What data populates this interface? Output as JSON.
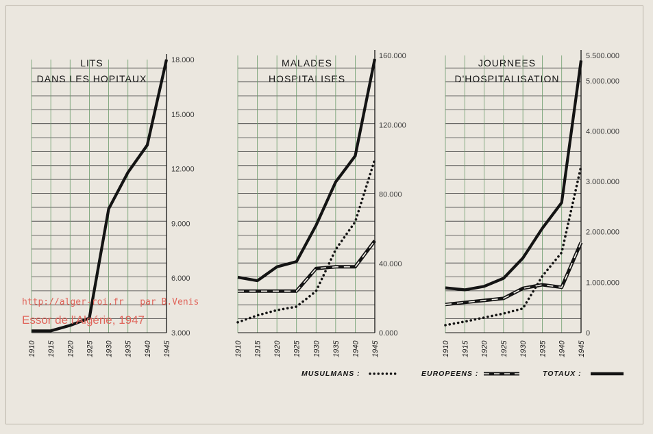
{
  "watermark": {
    "url": "http://alger-roi.fr",
    "credit": "par B.Venis",
    "source": "Essor de l'Algérie, 1947"
  },
  "legend": {
    "musulmans": "MUSULMANS :",
    "europeens": "EUROPEENS :",
    "totaux": "TOTAUX :"
  },
  "colors": {
    "paper": "#ebe7df",
    "ink": "#141414",
    "grid_h": "#3a3a3a",
    "grid_v": "#6c9c6c",
    "watermark": "#e0645a"
  },
  "chart_data": [
    {
      "type": "line",
      "title": "LITS",
      "subtitle": "DANS LES HOPITAUX",
      "x": [
        "1910",
        "1915",
        "1920",
        "1925",
        "1930",
        "1935",
        "1940",
        "1945"
      ],
      "ylim": [
        3000,
        18000
      ],
      "yticks": [
        "3.000",
        "6.000",
        "9.000",
        "12.000",
        "15.000",
        "18.000"
      ],
      "series": [
        {
          "name": "TOTAUX",
          "style": "solid",
          "values": [
            3100,
            3100,
            3400,
            3800,
            9800,
            11800,
            13300,
            18000
          ]
        }
      ]
    },
    {
      "type": "line",
      "title": "MALADES",
      "subtitle": "HOSPITALISES",
      "x": [
        "1910",
        "1915",
        "1920",
        "1925",
        "1930",
        "1935",
        "1940",
        "1945"
      ],
      "ylim": [
        0,
        160000
      ],
      "yticks": [
        "0.000",
        "40.000",
        "80.000",
        "120.000",
        "160.000"
      ],
      "series": [
        {
          "name": "TOTAUX",
          "style": "solid",
          "values": [
            32000,
            30000,
            38000,
            41000,
            62000,
            87000,
            102000,
            158000
          ]
        },
        {
          "name": "EUROPEENS",
          "style": "dashed",
          "values": [
            24000,
            24000,
            24000,
            24000,
            37000,
            38000,
            38000,
            53000
          ]
        },
        {
          "name": "MUSULMANS",
          "style": "dotted",
          "values": [
            6000,
            10000,
            13000,
            15000,
            24000,
            48000,
            64000,
            100000
          ]
        }
      ]
    },
    {
      "type": "line",
      "title": "JOURNEES",
      "subtitle": "D'HOSPITALISATION",
      "x": [
        "1910",
        "1915",
        "1920",
        "1925",
        "1930",
        "1935",
        "1940",
        "1945"
      ],
      "ylim": [
        0,
        5500000
      ],
      "yticks": [
        "0",
        "1.000.000",
        "2.000.000",
        "3.000.000",
        "4.000.000",
        "5.000.000",
        "5.500.000"
      ],
      "series": [
        {
          "name": "TOTAUX",
          "style": "solid",
          "values": [
            890000,
            850000,
            920000,
            1080000,
            1480000,
            2070000,
            2580000,
            5400000
          ]
        },
        {
          "name": "EUROPEENS",
          "style": "dashed",
          "values": [
            560000,
            600000,
            640000,
            680000,
            880000,
            950000,
            900000,
            1790000
          ]
        },
        {
          "name": "MUSULMANS",
          "style": "dotted",
          "values": [
            150000,
            220000,
            300000,
            380000,
            480000,
            1120000,
            1590000,
            3300000
          ]
        }
      ]
    }
  ]
}
